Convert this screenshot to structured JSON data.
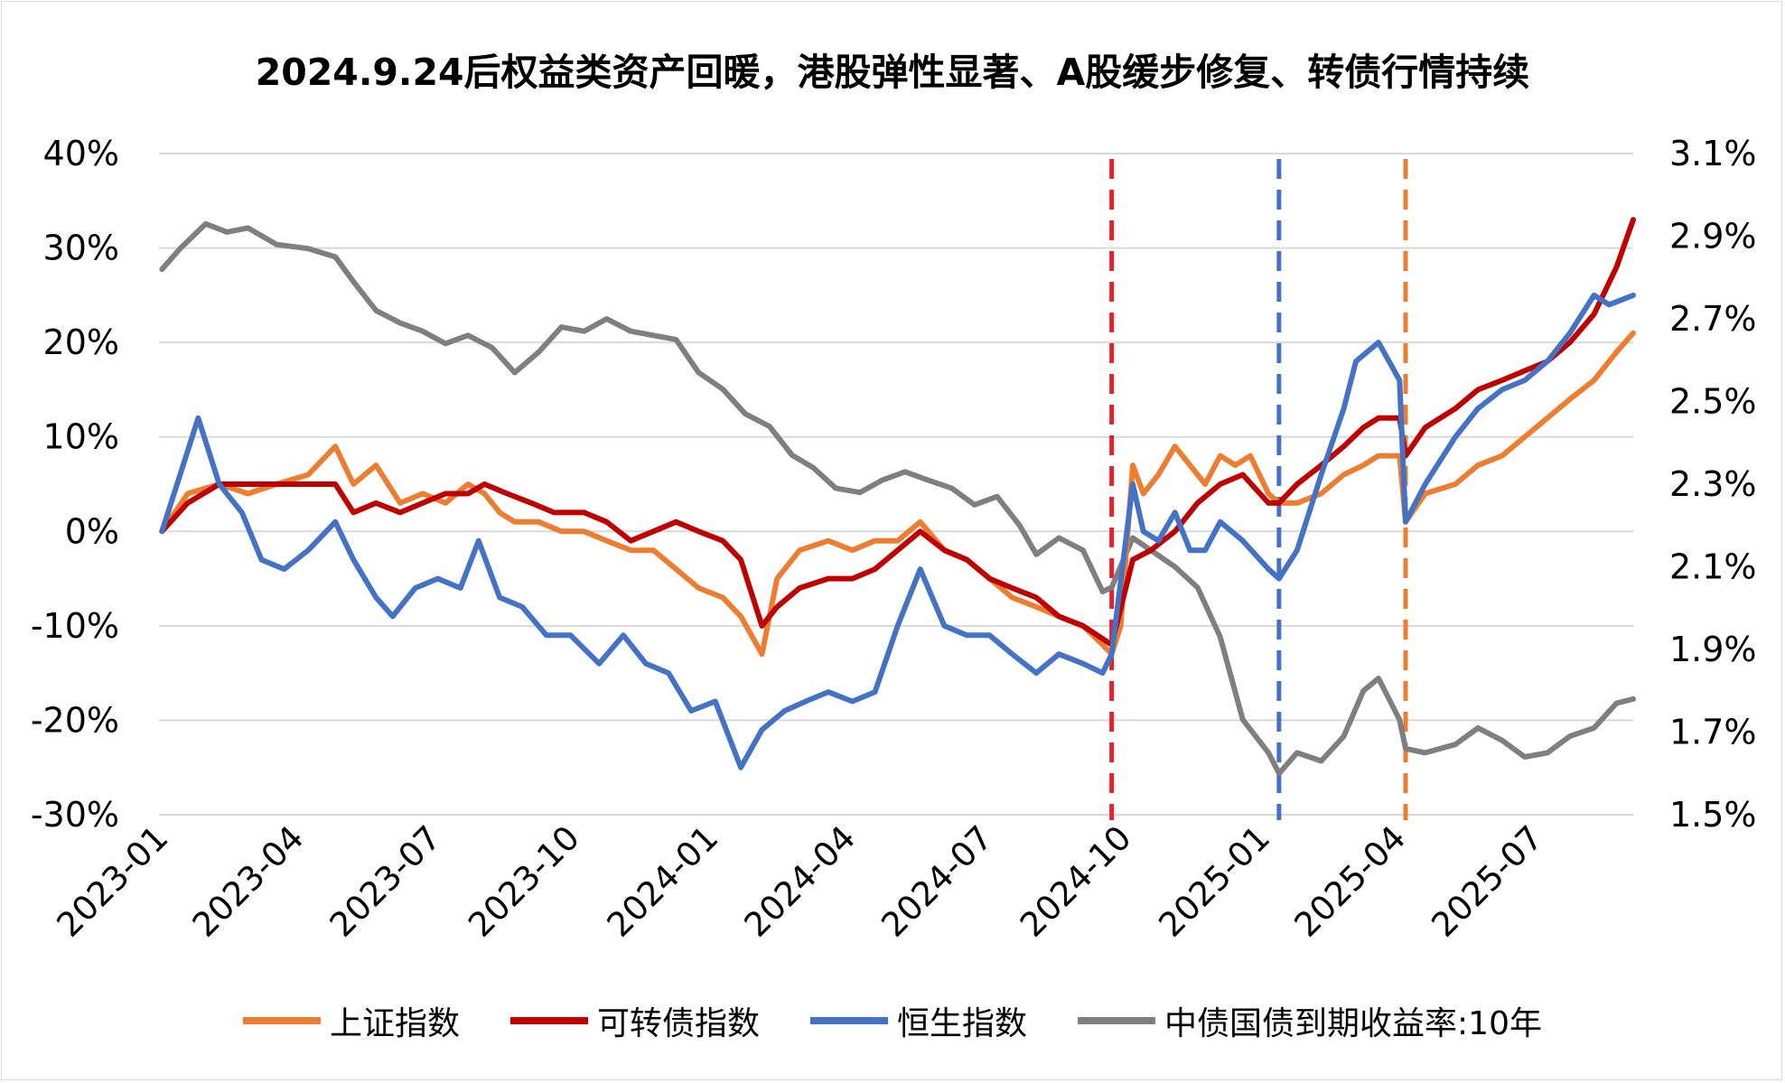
{
  "chart_data": {
    "type": "line",
    "title": "2024.9.24后权益类资产回暖，港股弹性显著、A股缓步修复、转债行情持续",
    "x_ticks": [
      "2023-01",
      "2023-04",
      "2023-07",
      "2023-10",
      "2024-01",
      "2024-04",
      "2024-07",
      "2024-10",
      "2025-01",
      "2025-04",
      "2025-07"
    ],
    "y_left_ticks": [
      "40%",
      "30%",
      "20%",
      "10%",
      "0%",
      "-10%",
      "-20%",
      "-30%"
    ],
    "y_right_ticks": [
      "3.1%",
      "2.9%",
      "2.7%",
      "2.5%",
      "2.3%",
      "2.1%",
      "1.9%",
      "1.7%",
      "1.5%"
    ],
    "y_left_range": [
      -30,
      40
    ],
    "y_right_range": [
      1.5,
      3.1
    ],
    "x_range": [
      "2023-01-01",
      "2025-09-05"
    ],
    "grid": "horizontal",
    "legend_position": "bottom",
    "vlines": [
      {
        "date": "2024-09-24",
        "color": "#e8202a"
      },
      {
        "date": "2025-01-13",
        "color": "#4472c4"
      },
      {
        "date": "2025-04-07",
        "color": "#ed7d31"
      }
    ],
    "series": [
      {
        "name": "上证指数",
        "color": "#ed7d31",
        "axis": "left",
        "points": [
          [
            "2023-01-03",
            0
          ],
          [
            "2023-01-20",
            4
          ],
          [
            "2023-02-10",
            5
          ],
          [
            "2023-03-01",
            4
          ],
          [
            "2023-03-20",
            5
          ],
          [
            "2023-04-10",
            6
          ],
          [
            "2023-04-28",
            9
          ],
          [
            "2023-05-10",
            5
          ],
          [
            "2023-05-25",
            7
          ],
          [
            "2023-06-10",
            3
          ],
          [
            "2023-06-25",
            4
          ],
          [
            "2023-07-10",
            3
          ],
          [
            "2023-07-25",
            5
          ],
          [
            "2023-08-05",
            4
          ],
          [
            "2023-08-15",
            2
          ],
          [
            "2023-08-25",
            1
          ],
          [
            "2023-09-10",
            1
          ],
          [
            "2023-09-25",
            0
          ],
          [
            "2023-10-10",
            0
          ],
          [
            "2023-10-25",
            -1
          ],
          [
            "2023-11-10",
            -2
          ],
          [
            "2023-11-25",
            -2
          ],
          [
            "2023-12-10",
            -4
          ],
          [
            "2023-12-25",
            -6
          ],
          [
            "2024-01-10",
            -7
          ],
          [
            "2024-01-22",
            -9
          ],
          [
            "2024-02-05",
            -13
          ],
          [
            "2024-02-15",
            -5
          ],
          [
            "2024-03-01",
            -2
          ],
          [
            "2024-03-20",
            -1
          ],
          [
            "2024-04-05",
            -2
          ],
          [
            "2024-04-20",
            -1
          ],
          [
            "2024-05-05",
            -1
          ],
          [
            "2024-05-20",
            1
          ],
          [
            "2024-06-05",
            -2
          ],
          [
            "2024-06-20",
            -3
          ],
          [
            "2024-07-05",
            -5
          ],
          [
            "2024-07-20",
            -7
          ],
          [
            "2024-08-05",
            -8
          ],
          [
            "2024-08-20",
            -9
          ],
          [
            "2024-09-05",
            -10
          ],
          [
            "2024-09-18",
            -12
          ],
          [
            "2024-09-24",
            -13
          ],
          [
            "2024-09-30",
            -10
          ],
          [
            "2024-10-08",
            7
          ],
          [
            "2024-10-15",
            4
          ],
          [
            "2024-10-25",
            6
          ],
          [
            "2024-11-05",
            9
          ],
          [
            "2024-11-15",
            7
          ],
          [
            "2024-11-25",
            5
          ],
          [
            "2024-12-05",
            8
          ],
          [
            "2024-12-15",
            7
          ],
          [
            "2024-12-25",
            8
          ],
          [
            "2025-01-06",
            4
          ],
          [
            "2025-01-13",
            3
          ],
          [
            "2025-01-25",
            3
          ],
          [
            "2025-02-10",
            4
          ],
          [
            "2025-02-25",
            6
          ],
          [
            "2025-03-10",
            7
          ],
          [
            "2025-03-20",
            8
          ],
          [
            "2025-04-03",
            8
          ],
          [
            "2025-04-07",
            1
          ],
          [
            "2025-04-20",
            4
          ],
          [
            "2025-05-10",
            5
          ],
          [
            "2025-05-25",
            7
          ],
          [
            "2025-06-10",
            8
          ],
          [
            "2025-06-25",
            10
          ],
          [
            "2025-07-10",
            12
          ],
          [
            "2025-07-25",
            14
          ],
          [
            "2025-08-10",
            16
          ],
          [
            "2025-08-25",
            19
          ],
          [
            "2025-09-05",
            21
          ]
        ]
      },
      {
        "name": "可转债指数",
        "color": "#c00000",
        "axis": "left",
        "points": [
          [
            "2023-01-03",
            0
          ],
          [
            "2023-01-20",
            3
          ],
          [
            "2023-02-10",
            5
          ],
          [
            "2023-03-01",
            5
          ],
          [
            "2023-03-20",
            5
          ],
          [
            "2023-04-10",
            5
          ],
          [
            "2023-04-28",
            5
          ],
          [
            "2023-05-10",
            2
          ],
          [
            "2023-05-25",
            3
          ],
          [
            "2023-06-10",
            2
          ],
          [
            "2023-06-25",
            3
          ],
          [
            "2023-07-10",
            4
          ],
          [
            "2023-07-25",
            4
          ],
          [
            "2023-08-05",
            5
          ],
          [
            "2023-08-20",
            4
          ],
          [
            "2023-09-05",
            3
          ],
          [
            "2023-09-20",
            2
          ],
          [
            "2023-10-10",
            2
          ],
          [
            "2023-10-25",
            1
          ],
          [
            "2023-11-10",
            -1
          ],
          [
            "2023-11-25",
            0
          ],
          [
            "2023-12-10",
            1
          ],
          [
            "2023-12-25",
            0
          ],
          [
            "2024-01-10",
            -1
          ],
          [
            "2024-01-22",
            -3
          ],
          [
            "2024-02-05",
            -10
          ],
          [
            "2024-02-15",
            -8
          ],
          [
            "2024-03-01",
            -6
          ],
          [
            "2024-03-20",
            -5
          ],
          [
            "2024-04-05",
            -5
          ],
          [
            "2024-04-20",
            -4
          ],
          [
            "2024-05-05",
            -2
          ],
          [
            "2024-05-20",
            0
          ],
          [
            "2024-06-05",
            -2
          ],
          [
            "2024-06-20",
            -3
          ],
          [
            "2024-07-05",
            -5
          ],
          [
            "2024-07-20",
            -6
          ],
          [
            "2024-08-05",
            -7
          ],
          [
            "2024-08-20",
            -9
          ],
          [
            "2024-09-05",
            -10
          ],
          [
            "2024-09-24",
            -12
          ],
          [
            "2024-10-08",
            -3
          ],
          [
            "2024-10-20",
            -2
          ],
          [
            "2024-11-05",
            0
          ],
          [
            "2024-11-20",
            3
          ],
          [
            "2024-12-05",
            5
          ],
          [
            "2024-12-20",
            6
          ],
          [
            "2025-01-06",
            3
          ],
          [
            "2025-01-13",
            3
          ],
          [
            "2025-01-25",
            5
          ],
          [
            "2025-02-10",
            7
          ],
          [
            "2025-02-25",
            9
          ],
          [
            "2025-03-10",
            11
          ],
          [
            "2025-03-20",
            12
          ],
          [
            "2025-04-03",
            12
          ],
          [
            "2025-04-07",
            8
          ],
          [
            "2025-04-20",
            11
          ],
          [
            "2025-05-10",
            13
          ],
          [
            "2025-05-25",
            15
          ],
          [
            "2025-06-10",
            16
          ],
          [
            "2025-06-25",
            17
          ],
          [
            "2025-07-10",
            18
          ],
          [
            "2025-07-25",
            20
          ],
          [
            "2025-08-10",
            23
          ],
          [
            "2025-08-25",
            28
          ],
          [
            "2025-09-05",
            33
          ]
        ]
      },
      {
        "name": "恒生指数",
        "color": "#4472c4",
        "axis": "left",
        "points": [
          [
            "2023-01-03",
            0
          ],
          [
            "2023-01-15",
            6
          ],
          [
            "2023-01-27",
            12
          ],
          [
            "2023-02-10",
            5
          ],
          [
            "2023-02-25",
            2
          ],
          [
            "2023-03-10",
            -3
          ],
          [
            "2023-03-25",
            -4
          ],
          [
            "2023-04-10",
            -2
          ],
          [
            "2023-04-28",
            1
          ],
          [
            "2023-05-10",
            -3
          ],
          [
            "2023-05-25",
            -7
          ],
          [
            "2023-06-05",
            -9
          ],
          [
            "2023-06-20",
            -6
          ],
          [
            "2023-07-05",
            -5
          ],
          [
            "2023-07-20",
            -6
          ],
          [
            "2023-08-01",
            -1
          ],
          [
            "2023-08-15",
            -7
          ],
          [
            "2023-08-30",
            -8
          ],
          [
            "2023-09-15",
            -11
          ],
          [
            "2023-10-01",
            -11
          ],
          [
            "2023-10-20",
            -14
          ],
          [
            "2023-11-05",
            -11
          ],
          [
            "2023-11-20",
            -14
          ],
          [
            "2023-12-05",
            -15
          ],
          [
            "2023-12-20",
            -19
          ],
          [
            "2024-01-05",
            -18
          ],
          [
            "2024-01-22",
            -25
          ],
          [
            "2024-02-05",
            -21
          ],
          [
            "2024-02-20",
            -19
          ],
          [
            "2024-03-05",
            -18
          ],
          [
            "2024-03-20",
            -17
          ],
          [
            "2024-04-05",
            -18
          ],
          [
            "2024-04-20",
            -17
          ],
          [
            "2024-05-05",
            -10
          ],
          [
            "2024-05-20",
            -4
          ],
          [
            "2024-06-05",
            -10
          ],
          [
            "2024-06-20",
            -11
          ],
          [
            "2024-07-05",
            -11
          ],
          [
            "2024-07-20",
            -13
          ],
          [
            "2024-08-05",
            -15
          ],
          [
            "2024-08-20",
            -13
          ],
          [
            "2024-09-05",
            -14
          ],
          [
            "2024-09-18",
            -15
          ],
          [
            "2024-09-24",
            -13
          ],
          [
            "2024-10-08",
            5
          ],
          [
            "2024-10-15",
            0
          ],
          [
            "2024-10-25",
            -1
          ],
          [
            "2024-11-05",
            2
          ],
          [
            "2024-11-15",
            -2
          ],
          [
            "2024-11-25",
            -2
          ],
          [
            "2024-12-05",
            1
          ],
          [
            "2024-12-20",
            -1
          ],
          [
            "2025-01-06",
            -4
          ],
          [
            "2025-01-13",
            -5
          ],
          [
            "2025-01-25",
            -2
          ],
          [
            "2025-02-10",
            6
          ],
          [
            "2025-02-25",
            13
          ],
          [
            "2025-03-05",
            18
          ],
          [
            "2025-03-20",
            20
          ],
          [
            "2025-04-03",
            16
          ],
          [
            "2025-04-07",
            1
          ],
          [
            "2025-04-20",
            5
          ],
          [
            "2025-05-10",
            10
          ],
          [
            "2025-05-25",
            13
          ],
          [
            "2025-06-10",
            15
          ],
          [
            "2025-06-25",
            16
          ],
          [
            "2025-07-10",
            18
          ],
          [
            "2025-07-25",
            21
          ],
          [
            "2025-08-10",
            25
          ],
          [
            "2025-08-20",
            24
          ],
          [
            "2025-09-05",
            25
          ]
        ]
      },
      {
        "name": "中债国债到期收益率:10年",
        "color": "#7f7f7f",
        "axis": "right",
        "points": [
          [
            "2023-01-03",
            2.82
          ],
          [
            "2023-01-15",
            2.87
          ],
          [
            "2023-02-01",
            2.93
          ],
          [
            "2023-02-15",
            2.91
          ],
          [
            "2023-03-01",
            2.92
          ],
          [
            "2023-03-20",
            2.88
          ],
          [
            "2023-04-10",
            2.87
          ],
          [
            "2023-04-28",
            2.85
          ],
          [
            "2023-05-10",
            2.79
          ],
          [
            "2023-05-25",
            2.72
          ],
          [
            "2023-06-10",
            2.69
          ],
          [
            "2023-06-25",
            2.67
          ],
          [
            "2023-07-10",
            2.64
          ],
          [
            "2023-07-25",
            2.66
          ],
          [
            "2023-08-10",
            2.63
          ],
          [
            "2023-08-25",
            2.57
          ],
          [
            "2023-09-10",
            2.62
          ],
          [
            "2023-09-25",
            2.68
          ],
          [
            "2023-10-10",
            2.67
          ],
          [
            "2023-10-25",
            2.7
          ],
          [
            "2023-11-10",
            2.67
          ],
          [
            "2023-11-25",
            2.66
          ],
          [
            "2023-12-10",
            2.65
          ],
          [
            "2023-12-25",
            2.57
          ],
          [
            "2024-01-10",
            2.53
          ],
          [
            "2024-01-25",
            2.47
          ],
          [
            "2024-02-10",
            2.44
          ],
          [
            "2024-02-25",
            2.37
          ],
          [
            "2024-03-10",
            2.34
          ],
          [
            "2024-03-25",
            2.29
          ],
          [
            "2024-04-10",
            2.28
          ],
          [
            "2024-04-25",
            2.31
          ],
          [
            "2024-05-10",
            2.33
          ],
          [
            "2024-05-25",
            2.31
          ],
          [
            "2024-06-10",
            2.29
          ],
          [
            "2024-06-25",
            2.25
          ],
          [
            "2024-07-10",
            2.27
          ],
          [
            "2024-07-25",
            2.2
          ],
          [
            "2024-08-05",
            2.13
          ],
          [
            "2024-08-20",
            2.17
          ],
          [
            "2024-09-05",
            2.14
          ],
          [
            "2024-09-18",
            2.04
          ],
          [
            "2024-09-24",
            2.05
          ],
          [
            "2024-10-08",
            2.17
          ],
          [
            "2024-10-20",
            2.14
          ],
          [
            "2024-11-05",
            2.1
          ],
          [
            "2024-11-20",
            2.05
          ],
          [
            "2024-12-05",
            1.93
          ],
          [
            "2024-12-20",
            1.73
          ],
          [
            "2025-01-06",
            1.65
          ],
          [
            "2025-01-13",
            1.6
          ],
          [
            "2025-01-25",
            1.65
          ],
          [
            "2025-02-10",
            1.63
          ],
          [
            "2025-02-25",
            1.69
          ],
          [
            "2025-03-10",
            1.8
          ],
          [
            "2025-03-20",
            1.83
          ],
          [
            "2025-04-03",
            1.73
          ],
          [
            "2025-04-07",
            1.66
          ],
          [
            "2025-04-20",
            1.65
          ],
          [
            "2025-05-10",
            1.67
          ],
          [
            "2025-05-25",
            1.71
          ],
          [
            "2025-06-10",
            1.68
          ],
          [
            "2025-06-25",
            1.64
          ],
          [
            "2025-07-10",
            1.65
          ],
          [
            "2025-07-25",
            1.69
          ],
          [
            "2025-08-10",
            1.71
          ],
          [
            "2025-08-25",
            1.77
          ],
          [
            "2025-09-05",
            1.78
          ]
        ]
      }
    ]
  }
}
